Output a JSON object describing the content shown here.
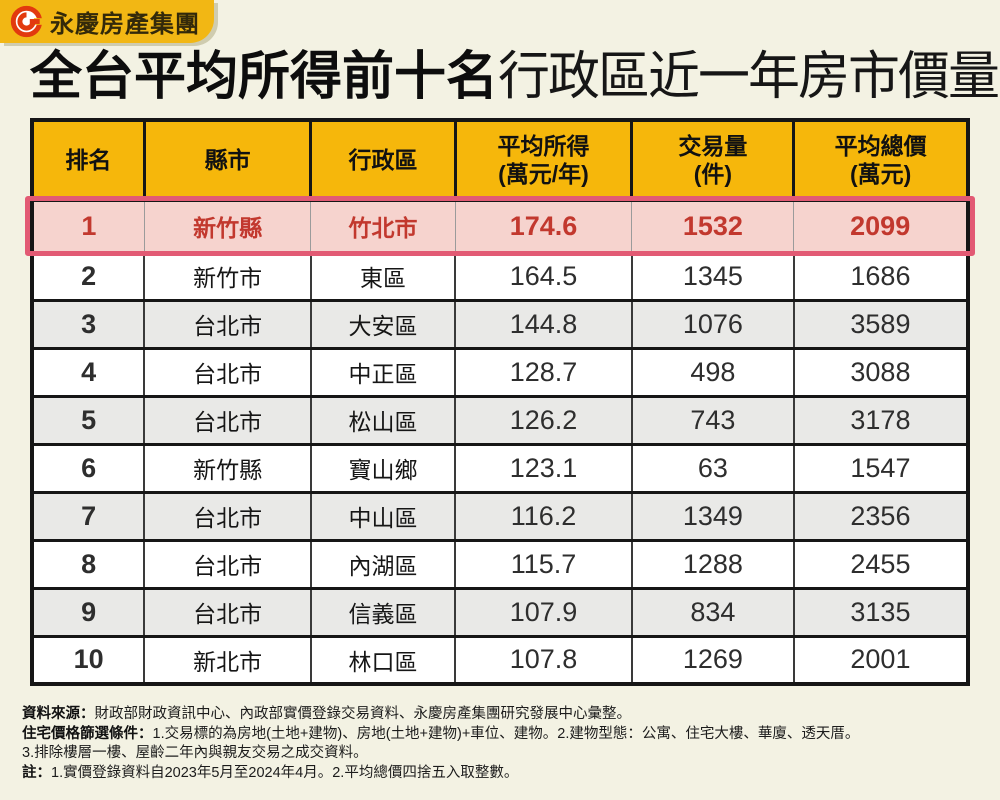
{
  "brand": {
    "name": "永慶房產集團"
  },
  "title": {
    "bold": "全台平均所得前十名",
    "regular": "行政區近一年房市價量"
  },
  "table": {
    "columns": [
      {
        "label": "排名",
        "sub": ""
      },
      {
        "label": "縣市",
        "sub": ""
      },
      {
        "label": "行政區",
        "sub": ""
      },
      {
        "label": "平均所得",
        "sub": "(萬元/年)"
      },
      {
        "label": "交易量",
        "sub": "(件)"
      },
      {
        "label": "平均總價",
        "sub": "(萬元)"
      }
    ],
    "rows": [
      {
        "rank": "1",
        "county": "新竹縣",
        "district": "竹北市",
        "income": "174.6",
        "volume": "1532",
        "price": "2099",
        "highlight": true
      },
      {
        "rank": "2",
        "county": "新竹市",
        "district": "東區",
        "income": "164.5",
        "volume": "1345",
        "price": "1686",
        "highlight": false
      },
      {
        "rank": "3",
        "county": "台北市",
        "district": "大安區",
        "income": "144.8",
        "volume": "1076",
        "price": "3589",
        "highlight": false
      },
      {
        "rank": "4",
        "county": "台北市",
        "district": "中正區",
        "income": "128.7",
        "volume": "498",
        "price": "3088",
        "highlight": false
      },
      {
        "rank": "5",
        "county": "台北市",
        "district": "松山區",
        "income": "126.2",
        "volume": "743",
        "price": "3178",
        "highlight": false
      },
      {
        "rank": "6",
        "county": "新竹縣",
        "district": "寶山鄉",
        "income": "123.1",
        "volume": "63",
        "price": "1547",
        "highlight": false
      },
      {
        "rank": "7",
        "county": "台北市",
        "district": "中山區",
        "income": "116.2",
        "volume": "1349",
        "price": "2356",
        "highlight": false
      },
      {
        "rank": "8",
        "county": "台北市",
        "district": "內湖區",
        "income": "115.7",
        "volume": "1288",
        "price": "2455",
        "highlight": false
      },
      {
        "rank": "9",
        "county": "台北市",
        "district": "信義區",
        "income": "107.9",
        "volume": "834",
        "price": "3135",
        "highlight": false
      },
      {
        "rank": "10",
        "county": "新北市",
        "district": "林口區",
        "income": "107.8",
        "volume": "1269",
        "price": "2001",
        "highlight": false
      }
    ]
  },
  "chart_data": {
    "type": "table",
    "title": "全台平均所得前十名行政區近一年房市價量",
    "columns": [
      "排名",
      "縣市",
      "行政區",
      "平均所得(萬元/年)",
      "交易量(件)",
      "平均總價(萬元)"
    ],
    "rows": [
      [
        1,
        "新竹縣",
        "竹北市",
        174.6,
        1532,
        2099
      ],
      [
        2,
        "新竹市",
        "東區",
        164.5,
        1345,
        1686
      ],
      [
        3,
        "台北市",
        "大安區",
        144.8,
        1076,
        3589
      ],
      [
        4,
        "台北市",
        "中正區",
        128.7,
        498,
        3088
      ],
      [
        5,
        "台北市",
        "松山區",
        126.2,
        743,
        3178
      ],
      [
        6,
        "新竹縣",
        "寶山鄉",
        123.1,
        63,
        1547
      ],
      [
        7,
        "台北市",
        "中山區",
        116.2,
        1349,
        2356
      ],
      [
        8,
        "台北市",
        "內湖區",
        115.7,
        1288,
        2455
      ],
      [
        9,
        "台北市",
        "信義區",
        107.9,
        834,
        3135
      ],
      [
        10,
        "新北市",
        "林口區",
        107.8,
        1269,
        2001
      ]
    ],
    "highlighted_row_rank": 1
  },
  "footer": {
    "lines": [
      {
        "label": "資料來源：",
        "text": "財政部財政資訊中心、內政部實價登錄交易資料、永慶房產集團研究發展中心彙整。"
      },
      {
        "label": "住宅價格篩選條件：",
        "text": "1.交易標的為房地(土地+建物)、房地(土地+建物)+車位、建物。2.建物型態：公寓、住宅大樓、華廈、透天厝。"
      },
      {
        "label": "",
        "text": "3.排除樓層一樓、屋齡二年內與親友交易之成交資料。"
      },
      {
        "label": "註：",
        "text": "1.實價登錄資料自2023年5月至2024年4月。2.平均總價四捨五入取整數。"
      }
    ]
  },
  "colors": {
    "page_bg": "#F3F2E3",
    "header_yellow": "#F6B70B",
    "banner_yellow": "#F2B714",
    "highlight_bg": "#F6D3CE",
    "highlight_border": "#E25A74",
    "highlight_text": "#C2382E",
    "alt_row_gray": "#E9E9E7",
    "table_border": "#161616",
    "logo_red": "#E23A0E"
  }
}
